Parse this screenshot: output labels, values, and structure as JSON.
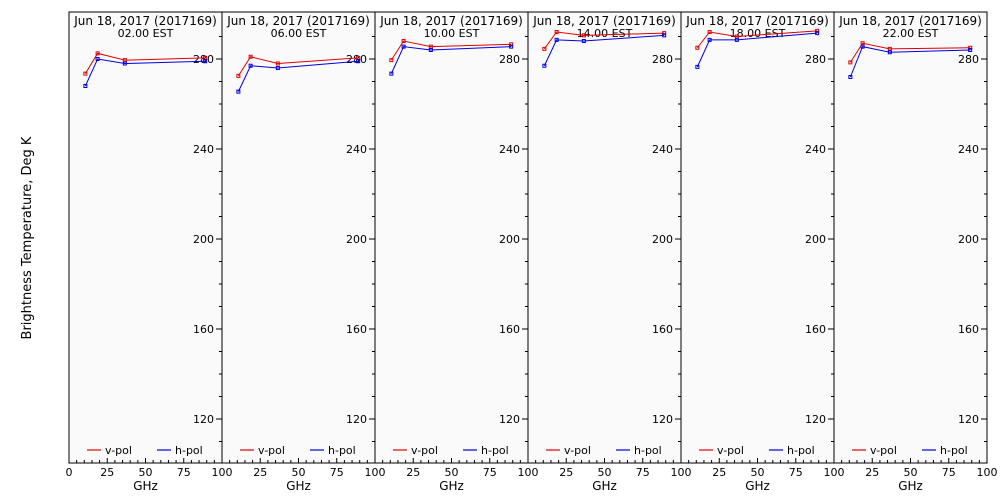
{
  "ylabel": "Brightness Temperature, Deg K",
  "colors": {
    "v_pol": "#e00000",
    "h_pol": "#0000e0",
    "axis": "#000000",
    "plot_bg": "#fafafa"
  },
  "chart_data": [
    {
      "type": "line",
      "title": "Jun 18, 2017 (2017169)",
      "subtitle": "02.00 EST",
      "xlabel": "GHz",
      "xlim": [
        0,
        100
      ],
      "ylim": [
        100,
        295
      ],
      "xticks": [
        "0",
        "25",
        "50",
        "75",
        "100"
      ],
      "yticks": [
        "120",
        "160",
        "200",
        "240",
        "280"
      ],
      "legend": "bottom",
      "series": [
        {
          "name": "v-pol",
          "x": [
            10.7,
            18.7,
            36.5,
            89
          ],
          "y": [
            273.5,
            282.5,
            279.5,
            280.5
          ]
        },
        {
          "name": "h-pol",
          "x": [
            10.7,
            18.7,
            36.5,
            89
          ],
          "y": [
            268,
            280,
            278,
            279
          ]
        }
      ]
    },
    {
      "type": "line",
      "title": "Jun 18, 2017 (2017169)",
      "subtitle": "06.00 EST",
      "xlabel": "GHz",
      "xlim": [
        0,
        100
      ],
      "ylim": [
        100,
        295
      ],
      "xticks": [
        "25",
        "50",
        "75",
        "100"
      ],
      "yticks": [
        "120",
        "160",
        "200",
        "240",
        "280"
      ],
      "legend": "bottom",
      "series": [
        {
          "name": "v-pol",
          "x": [
            10.7,
            18.7,
            36.5,
            89
          ],
          "y": [
            272.5,
            281,
            278,
            280.5
          ]
        },
        {
          "name": "h-pol",
          "x": [
            10.7,
            18.7,
            36.5,
            89
          ],
          "y": [
            265.5,
            277,
            276,
            279
          ]
        }
      ]
    },
    {
      "type": "line",
      "title": "Jun 18, 2017 (2017169)",
      "subtitle": "10.00 EST",
      "xlabel": "GHz",
      "xlim": [
        0,
        100
      ],
      "ylim": [
        100,
        295
      ],
      "xticks": [
        "25",
        "50",
        "75",
        "100"
      ],
      "yticks": [
        "120",
        "160",
        "200",
        "240",
        "280"
      ],
      "legend": "bottom",
      "series": [
        {
          "name": "v-pol",
          "x": [
            10.7,
            18.7,
            36.5,
            89
          ],
          "y": [
            279.5,
            288,
            285.5,
            286.5
          ]
        },
        {
          "name": "h-pol",
          "x": [
            10.7,
            18.7,
            36.5,
            89
          ],
          "y": [
            273.5,
            285.5,
            284,
            285.5
          ]
        }
      ]
    },
    {
      "type": "line",
      "title": "Jun 18, 2017 (2017169)",
      "subtitle": "14.00 EST",
      "xlabel": "GHz",
      "xlim": [
        0,
        100
      ],
      "ylim": [
        100,
        295
      ],
      "xticks": [
        "25",
        "50",
        "75",
        "100"
      ],
      "yticks": [
        "120",
        "160",
        "200",
        "240",
        "280"
      ],
      "legend": "bottom",
      "series": [
        {
          "name": "v-pol",
          "x": [
            10.7,
            18.7,
            36.5,
            89
          ],
          "y": [
            284.5,
            292,
            290.5,
            291.5
          ]
        },
        {
          "name": "h-pol",
          "x": [
            10.7,
            18.7,
            36.5,
            89
          ],
          "y": [
            277,
            288.5,
            288,
            290.5
          ]
        }
      ]
    },
    {
      "type": "line",
      "title": "Jun 18, 2017 (2017169)",
      "subtitle": "18.00 EST",
      "xlabel": "GHz",
      "xlim": [
        0,
        100
      ],
      "ylim": [
        100,
        295
      ],
      "xticks": [
        "25",
        "50",
        "75",
        "100"
      ],
      "yticks": [
        "120",
        "160",
        "200",
        "240",
        "280"
      ],
      "legend": "bottom",
      "series": [
        {
          "name": "v-pol",
          "x": [
            10.7,
            18.7,
            36.5,
            89
          ],
          "y": [
            285,
            292,
            290,
            292.5
          ]
        },
        {
          "name": "h-pol",
          "x": [
            10.7,
            18.7,
            36.5,
            89
          ],
          "y": [
            276.5,
            288.5,
            288.5,
            291.5
          ]
        }
      ]
    },
    {
      "type": "line",
      "title": "Jun 18, 2017 (2017169)",
      "subtitle": "22.00 EST",
      "xlabel": "GHz",
      "xlim": [
        0,
        100
      ],
      "ylim": [
        100,
        295
      ],
      "xticks": [
        "25",
        "50",
        "75",
        "100"
      ],
      "yticks": [
        "120",
        "160",
        "200",
        "240",
        "280"
      ],
      "legend": "bottom",
      "series": [
        {
          "name": "v-pol",
          "x": [
            10.7,
            18.7,
            36.5,
            89
          ],
          "y": [
            278.5,
            287,
            284.5,
            285
          ]
        },
        {
          "name": "h-pol",
          "x": [
            10.7,
            18.7,
            36.5,
            89
          ],
          "y": [
            272,
            285.5,
            283,
            284
          ]
        }
      ]
    }
  ]
}
